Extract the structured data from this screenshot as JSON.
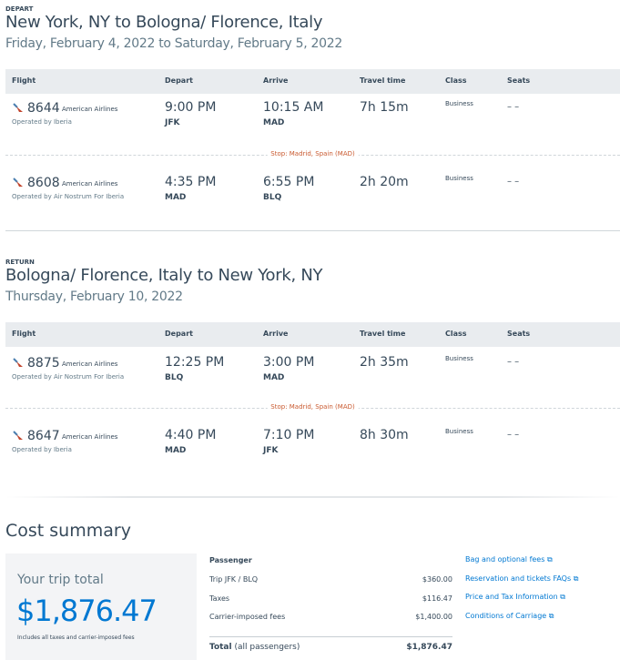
{
  "depart": {
    "label": "DEPART",
    "title": "New York, NY to Bologna/ Florence, Italy",
    "date": "Friday, February 4, 2022 to Saturday, February 5, 2022",
    "flights": [
      {
        "number": "8644",
        "airline": "American Airlines",
        "operated": "Operated by Iberia",
        "depart_time": "9:00 PM",
        "depart_airport": "JFK",
        "arrive_time": "10:15 AM",
        "arrive_airport": "MAD",
        "travel": "7h 15m",
        "class": "Business",
        "seats": "– –"
      },
      {
        "number": "8608",
        "airline": "American Airlines",
        "operated": "Operated by Air Nostrum For Iberia",
        "depart_time": "4:35 PM",
        "depart_airport": "MAD",
        "arrive_time": "6:55 PM",
        "arrive_airport": "BLQ",
        "travel": "2h 20m",
        "class": "Business",
        "seats": "– –"
      }
    ],
    "stop": "Stop: Madrid, Spain (MAD)"
  },
  "return": {
    "label": "RETURN",
    "title": "Bologna/ Florence, Italy to New York, NY",
    "date": "Thursday, February 10, 2022",
    "flights": [
      {
        "number": "8875",
        "airline": "American Airlines",
        "operated": "Operated by Air Nostrum For Iberia",
        "depart_time": "12:25 PM",
        "depart_airport": "BLQ",
        "arrive_time": "3:00 PM",
        "arrive_airport": "MAD",
        "travel": "2h 35m",
        "class": "Business",
        "seats": "– –"
      },
      {
        "number": "8647",
        "airline": "American Airlines",
        "operated": "Operated by Iberia",
        "depart_time": "4:40 PM",
        "depart_airport": "MAD",
        "arrive_time": "7:10 PM",
        "arrive_airport": "JFK",
        "travel": "8h 30m",
        "class": "Business",
        "seats": "– –"
      }
    ],
    "stop": "Stop: Madrid, Spain (MAD)"
  },
  "columns": [
    "Flight",
    "Depart",
    "Arrive",
    "Travel time",
    "Class",
    "Seats"
  ],
  "cost": {
    "title": "Cost summary",
    "trip_total_label": "Your trip total",
    "trip_total": "$1,876.47",
    "includes": "Includes all taxes and carrier-imposed fees",
    "passenger": "Passenger",
    "lines": [
      {
        "label": "Trip JFK / BLQ",
        "amount": "$360.00"
      },
      {
        "label": "Taxes",
        "amount": "$116.47"
      },
      {
        "label": "Carrier-imposed fees",
        "amount": "$1,400.00"
      }
    ],
    "total_label": "Total",
    "total_sub": "(all passengers)",
    "total": "$1,876.47",
    "links": [
      "Bag and optional fees",
      "Reservation and tickets FAQs",
      "Price and Tax Information",
      "Conditions of Carriage"
    ]
  },
  "colors": {
    "accent": "#0078d2",
    "text": "#36495a",
    "stop": "#c95a30"
  }
}
